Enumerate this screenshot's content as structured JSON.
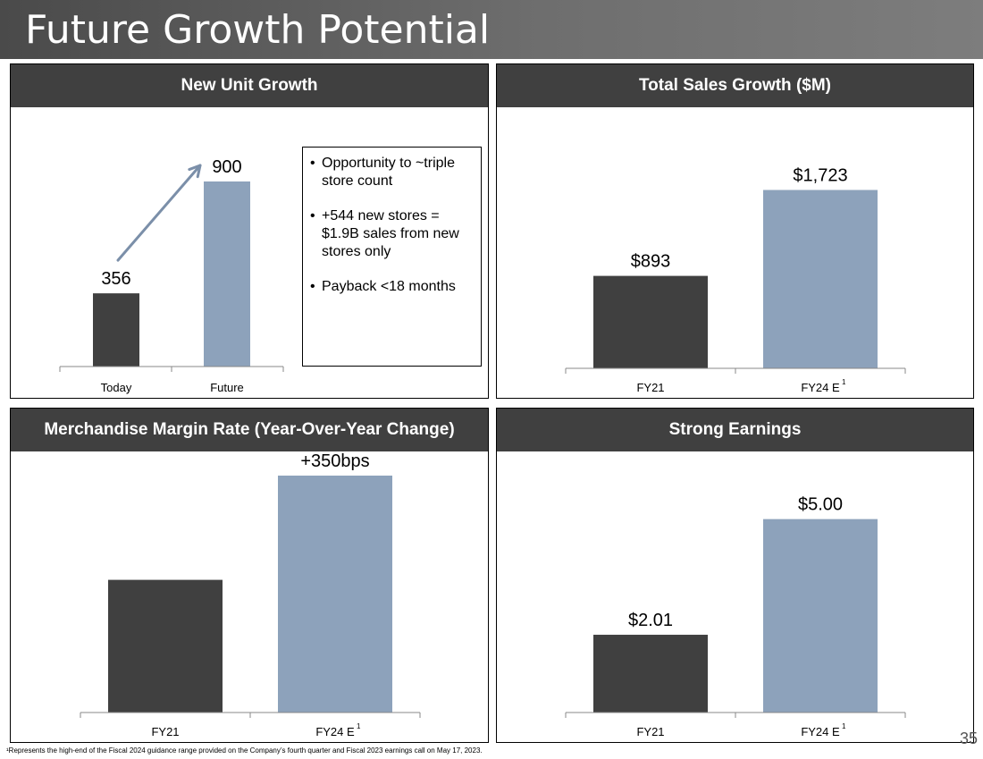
{
  "slide": {
    "title": "Future Growth Potential",
    "page_number": "35",
    "footnote": "¹Represents the high-end of the Fiscal 2024 guidance range provided on the Company’s fourth quarter and Fiscal 2023 earnings call on May 17, 2023."
  },
  "colors": {
    "dark_bar": "#404040",
    "light_bar": "#8da2bb",
    "header_bg": "#404040",
    "arrow": "#7b8fa9"
  },
  "notes": {
    "items": [
      "Opportunity to ~triple store count",
      "+544 new stores = $1.9B sales from new stores only",
      "Payback <18 months"
    ]
  },
  "chart_data": [
    {
      "type": "bar",
      "title": "New Unit Growth",
      "categories": [
        "Today",
        "Future"
      ],
      "values": [
        356,
        900
      ],
      "value_labels": [
        "356",
        "900"
      ],
      "superscripts": [
        "",
        ""
      ],
      "ylim": [
        0,
        1000
      ],
      "arrow": true
    },
    {
      "type": "bar",
      "title": "Total Sales Growth ($M)",
      "categories": [
        "FY21",
        "FY24 E"
      ],
      "values": [
        893,
        1723
      ],
      "value_labels": [
        "$893",
        "$1,723"
      ],
      "superscripts": [
        "",
        "1"
      ],
      "ylim": [
        0,
        1900
      ]
    },
    {
      "type": "bar",
      "title": "Merchandise Margin Rate (Year-Over-Year Change)",
      "categories": [
        "FY21",
        "FY24 E"
      ],
      "values": [
        0,
        350
      ],
      "value_labels": [
        "",
        "+350bps"
      ],
      "superscripts": [
        "",
        "1"
      ],
      "baseline_height_fraction": 0.56,
      "note": "FY21 bar shown as baseline margin rate; FY24 E bar is +350bps higher"
    },
    {
      "type": "bar",
      "title": "Strong Earnings",
      "categories": [
        "FY21",
        "FY24 E"
      ],
      "values": [
        2.01,
        5.0
      ],
      "value_labels": [
        "$2.01",
        "$5.00"
      ],
      "superscripts": [
        "",
        "1"
      ],
      "ylim": [
        0,
        5.5
      ]
    }
  ]
}
